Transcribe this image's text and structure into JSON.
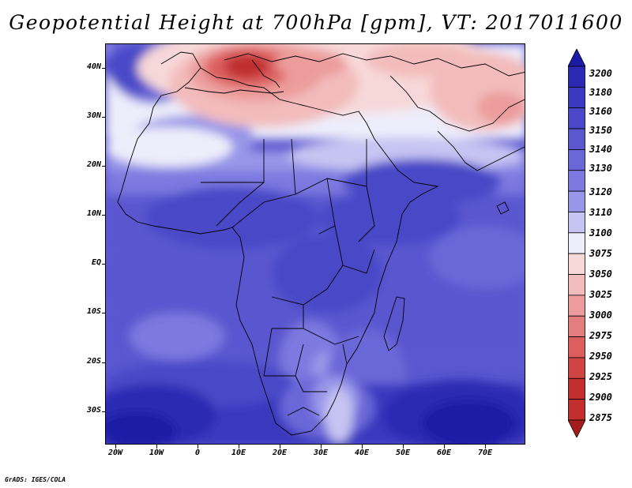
{
  "title": "Geopotential Height at 700hPa [gpm], VT: 2017011600",
  "credit": "GrADS: IGES/COLA",
  "map": {
    "lat_labels": [
      "40N",
      "30N",
      "20N",
      "10N",
      "EQ",
      "10S",
      "20S",
      "30S"
    ],
    "lon_labels": [
      "20W",
      "10W",
      "0",
      "10E",
      "20E",
      "30E",
      "40E",
      "50E",
      "60E",
      "70E"
    ]
  },
  "colorbar": {
    "levels": [
      "3200",
      "3180",
      "3160",
      "3150",
      "3140",
      "3130",
      "3120",
      "3110",
      "3100",
      "3075",
      "3050",
      "3025",
      "3000",
      "2975",
      "2950",
      "2925",
      "2900",
      "2875"
    ],
    "colors": [
      "#1c1aa6",
      "#2b29b3",
      "#3a38be",
      "#4a48c8",
      "#5a57cf",
      "#6a67d8",
      "#7c79e0",
      "#9896e8",
      "#c6c4f2",
      "#eeedfb",
      "#f7d8d8",
      "#f3bcbc",
      "#ec9c9c",
      "#e47e7e",
      "#dc5e5e",
      "#d04444",
      "#c02e2e",
      "#a51c1c"
    ]
  }
}
